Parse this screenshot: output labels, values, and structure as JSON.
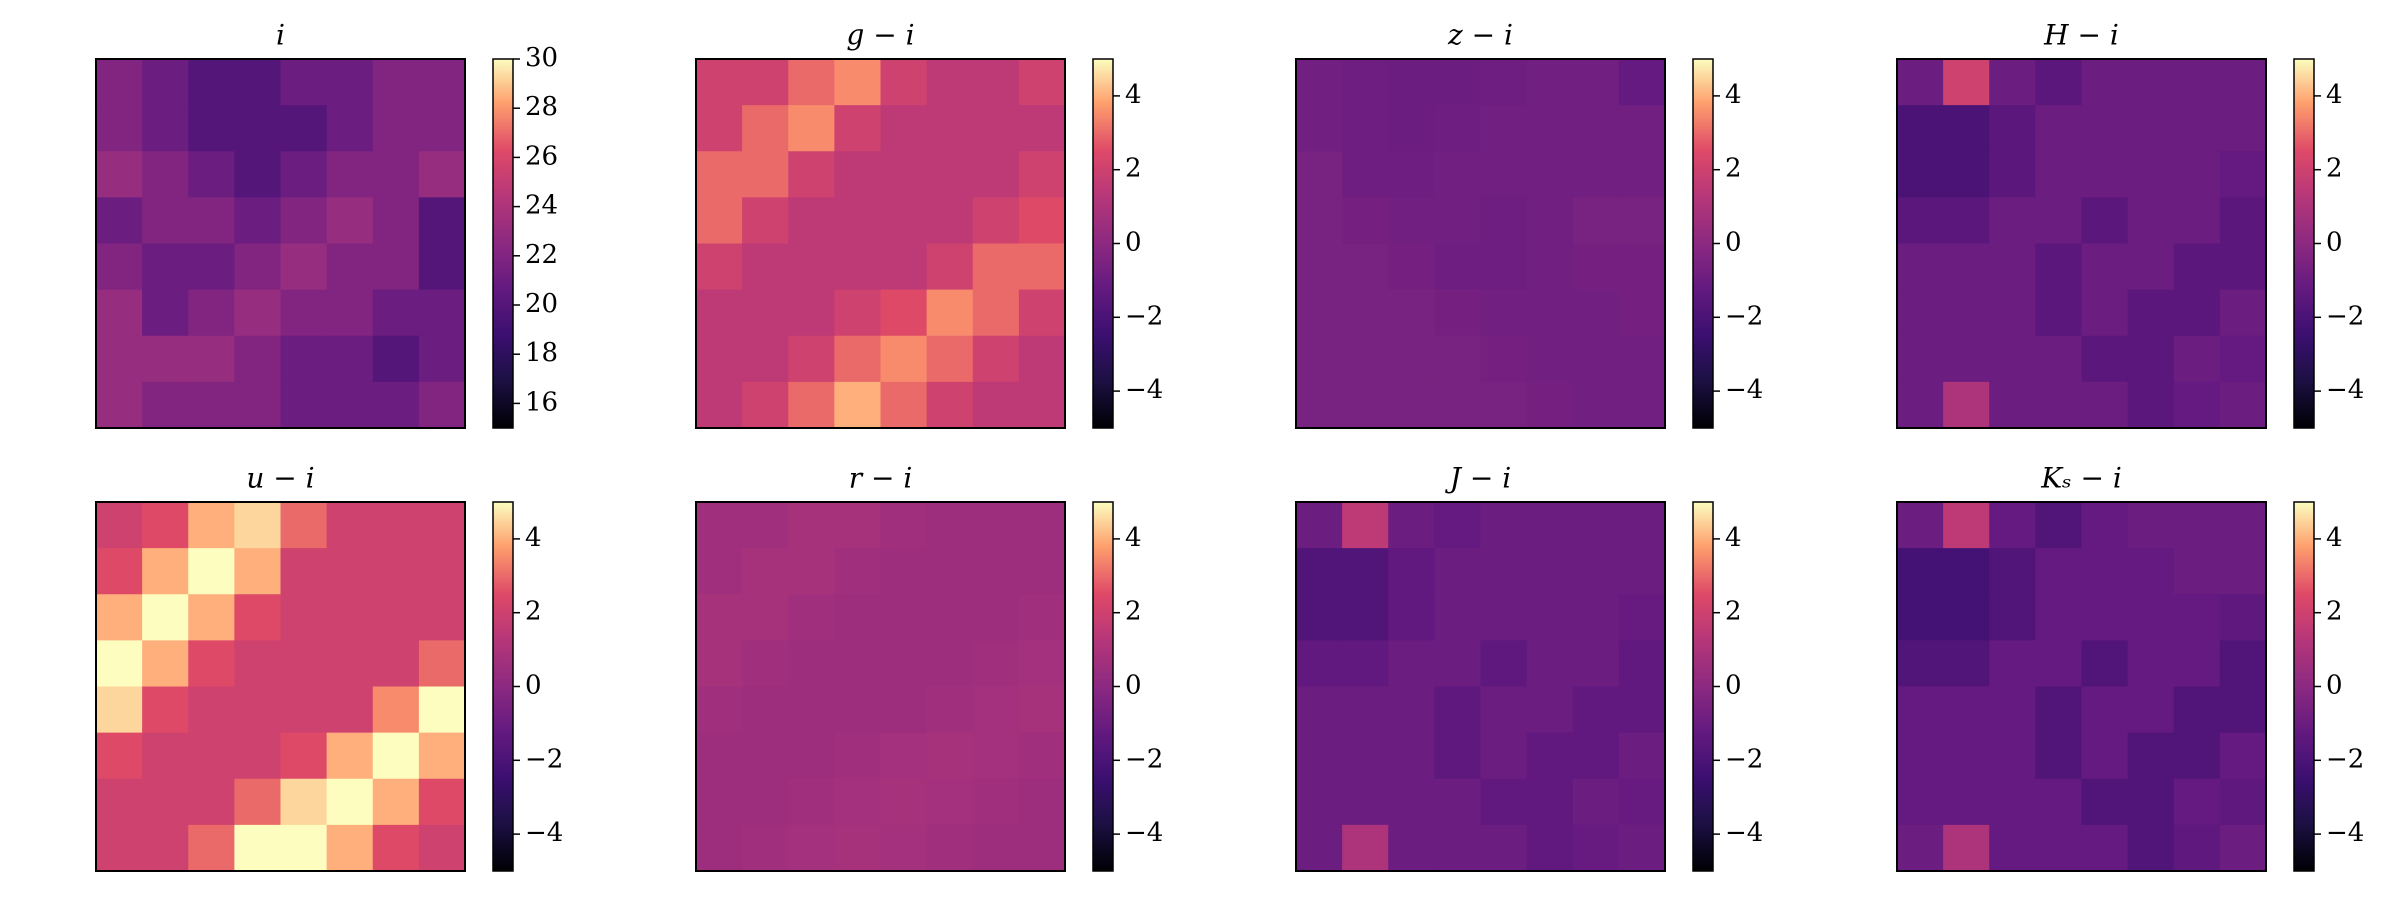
{
  "chart_data": [
    {
      "type": "heatmap",
      "title": "i",
      "cmap": "magma",
      "clim": [
        15,
        30
      ],
      "cticks": [
        16,
        18,
        20,
        22,
        24,
        26,
        28,
        30
      ],
      "z": [
        [
          22,
          21,
          20,
          20,
          21,
          21,
          22,
          22
        ],
        [
          22,
          21,
          20,
          20,
          20,
          21,
          22,
          22
        ],
        [
          23,
          22,
          21,
          20,
          21,
          22,
          22,
          23
        ],
        [
          21,
          22,
          22,
          21,
          22,
          23,
          22,
          20
        ],
        [
          22,
          21,
          21,
          22,
          23,
          22,
          22,
          20
        ],
        [
          23,
          21,
          22,
          23,
          22,
          22,
          21,
          21
        ],
        [
          23,
          23,
          23,
          22,
          21,
          21,
          20,
          21
        ],
        [
          23,
          22,
          22,
          22,
          21,
          21,
          21,
          22
        ]
      ]
    },
    {
      "type": "heatmap",
      "title": "g − i",
      "cmap": "magma",
      "clim": [
        -5,
        5
      ],
      "cticks": [
        {
          "value": -4,
          "label": "−4"
        },
        {
          "value": -2,
          "label": "−2"
        },
        0,
        2,
        4
      ],
      "z": [
        [
          2,
          2,
          3,
          3.5,
          2,
          1.5,
          1.5,
          2
        ],
        [
          2,
          3,
          3.5,
          2,
          1.5,
          1.5,
          1.5,
          1.5
        ],
        [
          3,
          3,
          2,
          1.5,
          1.5,
          1.5,
          1.5,
          2
        ],
        [
          3,
          2,
          1.5,
          1.5,
          1.5,
          1.5,
          2,
          2.5
        ],
        [
          2,
          1.5,
          1.5,
          1.5,
          1.5,
          2,
          3,
          3
        ],
        [
          1.5,
          1.5,
          1.5,
          2,
          2.5,
          3.5,
          3,
          2
        ],
        [
          1.5,
          1.5,
          2,
          3,
          3.5,
          3,
          2,
          1.5
        ],
        [
          1.5,
          2,
          3,
          4,
          3,
          2,
          1.5,
          1.5
        ]
      ]
    },
    {
      "type": "heatmap",
      "title": "z − i",
      "cmap": "magma",
      "clim": [
        -5,
        5
      ],
      "cticks": [
        {
          "value": -4,
          "label": "−4"
        },
        {
          "value": -2,
          "label": "−2"
        },
        0,
        2,
        4
      ],
      "z": [
        [
          -0.8,
          -0.9,
          -1,
          -1,
          -0.9,
          -0.8,
          -0.8,
          -1.2
        ],
        [
          -0.8,
          -0.9,
          -1,
          -0.9,
          -0.8,
          -0.8,
          -0.8,
          -0.8
        ],
        [
          -0.6,
          -0.9,
          -0.9,
          -0.8,
          -0.8,
          -0.8,
          -0.8,
          -0.8
        ],
        [
          -0.6,
          -0.7,
          -0.8,
          -0.8,
          -0.9,
          -0.8,
          -0.6,
          -0.6
        ],
        [
          -0.6,
          -0.6,
          -0.7,
          -0.9,
          -0.9,
          -0.8,
          -0.7,
          -0.7
        ],
        [
          -0.6,
          -0.6,
          -0.6,
          -0.7,
          -0.8,
          -0.8,
          -0.8,
          -0.7
        ],
        [
          -0.6,
          -0.6,
          -0.6,
          -0.6,
          -0.7,
          -0.8,
          -0.8,
          -0.8
        ],
        [
          -0.6,
          -0.6,
          -0.6,
          -0.6,
          -0.6,
          -0.7,
          -0.8,
          -0.8
        ]
      ]
    },
    {
      "type": "heatmap",
      "title": "H − i",
      "cmap": "magma",
      "clim": [
        -5,
        5
      ],
      "cticks": [
        {
          "value": -4,
          "label": "−4"
        },
        {
          "value": -2,
          "label": "−2"
        },
        0,
        2,
        4
      ],
      "z": [
        [
          -1,
          2,
          -1,
          -1.5,
          -1,
          -1,
          -1,
          -1
        ],
        [
          -2,
          -2,
          -1.5,
          -1,
          -1,
          -1,
          -1,
          -1
        ],
        [
          -2,
          -2,
          -1.5,
          -1,
          -1,
          -1,
          -1,
          -1.2
        ],
        [
          -1.5,
          -1.5,
          -1,
          -1,
          -1.5,
          -1,
          -1,
          -1.5
        ],
        [
          -1,
          -1,
          -1,
          -1.5,
          -1,
          -1,
          -1.5,
          -1.5
        ],
        [
          -1,
          -1,
          -1,
          -1.5,
          -1,
          -1.5,
          -1.5,
          -1
        ],
        [
          -1,
          -1,
          -1,
          -1,
          -1.5,
          -1.5,
          -1,
          -1.2
        ],
        [
          -1,
          1,
          -1,
          -1,
          -1,
          -1.5,
          -1.2,
          -1
        ]
      ]
    },
    {
      "type": "heatmap",
      "title": "u − i",
      "cmap": "magma",
      "clim": [
        -5,
        5
      ],
      "cticks": [
        {
          "value": -4,
          "label": "−4"
        },
        {
          "value": -2,
          "label": "−2"
        },
        0,
        2,
        4
      ],
      "z": [
        [
          2,
          2.5,
          4,
          4.5,
          3,
          2,
          2,
          2
        ],
        [
          2.5,
          4,
          5,
          4,
          2,
          2,
          2,
          2
        ],
        [
          4,
          5,
          4,
          2.5,
          2,
          2,
          2,
          2
        ],
        [
          5,
          4,
          2.5,
          2,
          2,
          2,
          2,
          3
        ],
        [
          4.5,
          2.5,
          2,
          2,
          2,
          2,
          3.5,
          5
        ],
        [
          2.5,
          2,
          2,
          2,
          2.5,
          4,
          5,
          4
        ],
        [
          2,
          2,
          2,
          3,
          4.5,
          5,
          4,
          2.5
        ],
        [
          2,
          2,
          3,
          5,
          5,
          4,
          2.5,
          2
        ]
      ]
    },
    {
      "type": "heatmap",
      "title": "r − i",
      "cmap": "magma",
      "clim": [
        -5,
        5
      ],
      "cticks": [
        {
          "value": -4,
          "label": "−4"
        },
        {
          "value": -2,
          "label": "−2"
        },
        0,
        2,
        4
      ],
      "z": [
        [
          0.6,
          0.6,
          0.8,
          0.8,
          0.6,
          0.5,
          0.5,
          0.5
        ],
        [
          0.6,
          0.8,
          0.8,
          0.6,
          0.5,
          0.5,
          0.5,
          0.5
        ],
        [
          0.8,
          0.8,
          0.6,
          0.5,
          0.5,
          0.5,
          0.5,
          0.6
        ],
        [
          0.8,
          0.6,
          0.5,
          0.5,
          0.5,
          0.5,
          0.6,
          0.7
        ],
        [
          0.6,
          0.5,
          0.5,
          0.5,
          0.5,
          0.6,
          0.7,
          0.8
        ],
        [
          0.5,
          0.5,
          0.5,
          0.6,
          0.7,
          0.8,
          0.7,
          0.6
        ],
        [
          0.5,
          0.5,
          0.6,
          0.7,
          0.8,
          0.7,
          0.6,
          0.5
        ],
        [
          0.5,
          0.6,
          0.7,
          0.8,
          0.7,
          0.6,
          0.5,
          0.5
        ]
      ]
    },
    {
      "type": "heatmap",
      "title": "J − i",
      "cmap": "magma",
      "clim": [
        -5,
        5
      ],
      "cticks": [
        {
          "value": -4,
          "label": "−4"
        },
        {
          "value": -2,
          "label": "−2"
        },
        0,
        2,
        4
      ],
      "z": [
        [
          -1,
          1.5,
          -1,
          -1.2,
          -1,
          -1,
          -1,
          -1
        ],
        [
          -1.8,
          -1.8,
          -1.3,
          -1,
          -1,
          -1,
          -1,
          -1
        ],
        [
          -1.8,
          -1.8,
          -1.3,
          -1,
          -1,
          -1,
          -1,
          -1.1
        ],
        [
          -1.3,
          -1.3,
          -1,
          -1,
          -1.4,
          -1,
          -1,
          -1.3
        ],
        [
          -1,
          -1,
          -1,
          -1.4,
          -1,
          -1,
          -1.3,
          -1.3
        ],
        [
          -1,
          -1,
          -1,
          -1.4,
          -1,
          -1.3,
          -1.3,
          -1
        ],
        [
          -1,
          -1,
          -1,
          -1,
          -1.3,
          -1.3,
          -1,
          -1.1
        ],
        [
          -1,
          1,
          -1,
          -1,
          -1,
          -1.3,
          -1.1,
          -1
        ]
      ]
    },
    {
      "type": "heatmap",
      "title": "Kₛ − i",
      "cmap": "magma",
      "clim": [
        -5,
        5
      ],
      "cticks": [
        {
          "value": -4,
          "label": "−4"
        },
        {
          "value": -2,
          "label": "−2"
        },
        0,
        2,
        4
      ],
      "z": [
        [
          -1,
          1.5,
          -1.2,
          -1.8,
          -1.2,
          -1,
          -1,
          -1
        ],
        [
          -2.2,
          -2.2,
          -1.8,
          -1.2,
          -1.2,
          -1.2,
          -1,
          -1
        ],
        [
          -2.2,
          -2.2,
          -1.8,
          -1.2,
          -1.2,
          -1.2,
          -1.2,
          -1.4
        ],
        [
          -1.8,
          -1.8,
          -1.2,
          -1.2,
          -1.8,
          -1.2,
          -1.2,
          -1.8
        ],
        [
          -1.2,
          -1.2,
          -1.2,
          -1.8,
          -1.2,
          -1.2,
          -1.8,
          -1.8
        ],
        [
          -1.2,
          -1.2,
          -1.2,
          -1.8,
          -1.2,
          -1.8,
          -1.8,
          -1.2
        ],
        [
          -1.2,
          -1.2,
          -1.2,
          -1.2,
          -1.8,
          -1.8,
          -1.2,
          -1.4
        ],
        [
          -1,
          1,
          -1.2,
          -1.2,
          -1.2,
          -1.8,
          -1.4,
          -1
        ]
      ]
    }
  ]
}
